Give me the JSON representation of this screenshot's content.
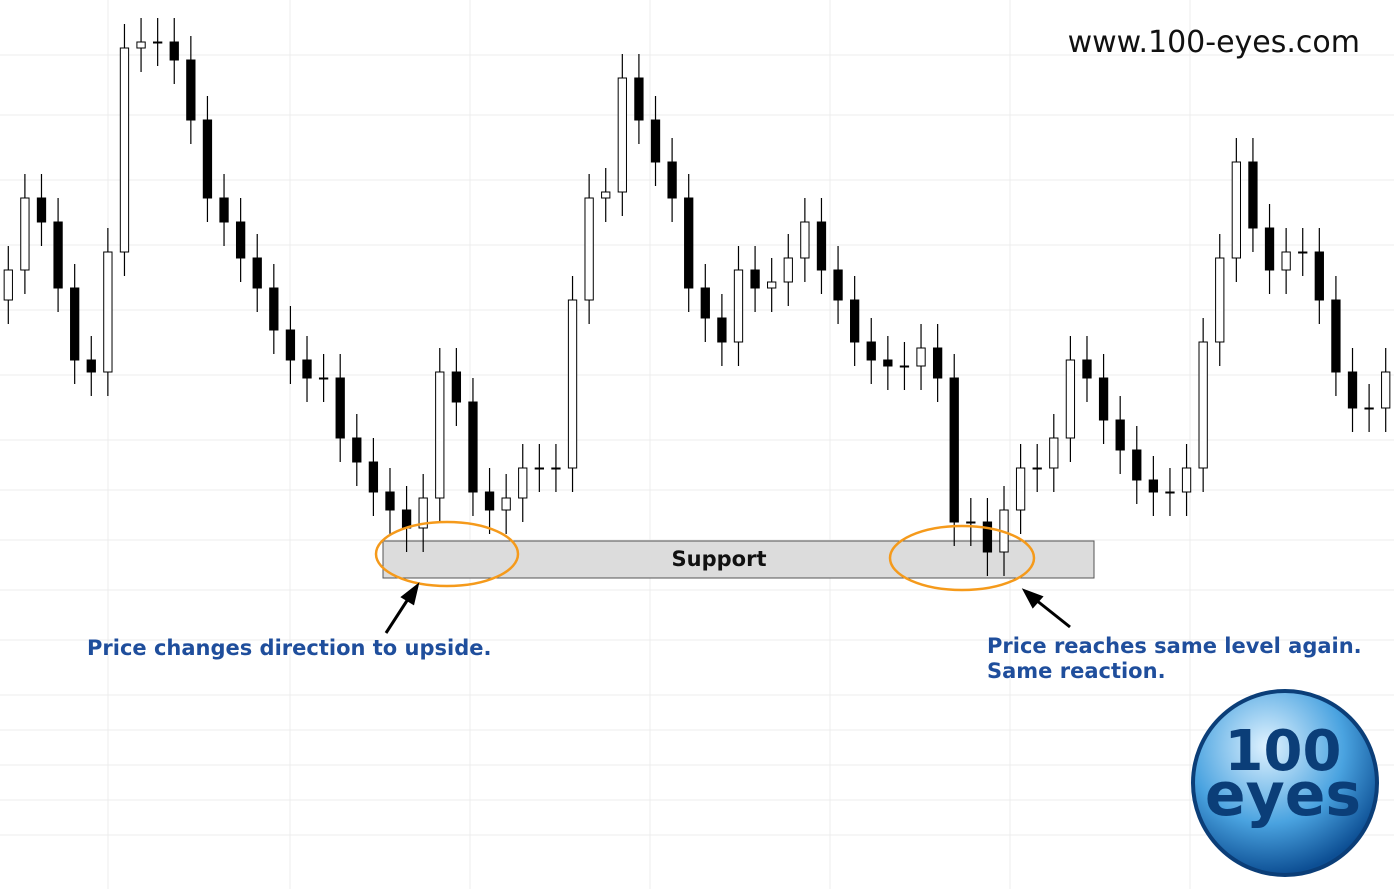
{
  "chart_data": {
    "type": "candlestick",
    "ylim": [
      0,
      100
    ],
    "up_color": "#ffffff",
    "down_color": "#000000",
    "wick_color": "#000000",
    "open": [
      50,
      55,
      67,
      63,
      52,
      40,
      38,
      58,
      92,
      93,
      93,
      90,
      80,
      67,
      63,
      57,
      52,
      45,
      40,
      37,
      37,
      27,
      23,
      18,
      15,
      12,
      17,
      38,
      33,
      18,
      15,
      17,
      22,
      22,
      22,
      50,
      67,
      68,
      87,
      80,
      73,
      67,
      52,
      47,
      43,
      55,
      52,
      53,
      57,
      63,
      55,
      50,
      43,
      40,
      39,
      39,
      42,
      37,
      13,
      13,
      8,
      15,
      22,
      22,
      27,
      40,
      37,
      30,
      25,
      20,
      18,
      18,
      22,
      43,
      57,
      73,
      62,
      55,
      58,
      58,
      50,
      38,
      32,
      32
    ],
    "high": [
      59,
      71,
      71,
      67,
      56,
      44,
      62,
      96,
      97,
      97,
      97,
      94,
      84,
      71,
      67,
      61,
      56,
      49,
      44,
      41,
      41,
      31,
      27,
      22,
      19,
      21,
      42,
      42,
      37,
      22,
      21,
      26,
      26,
      26,
      54,
      71,
      72,
      91,
      91,
      84,
      77,
      71,
      56,
      51,
      59,
      59,
      57,
      61,
      67,
      67,
      59,
      54,
      47,
      44,
      43,
      46,
      46,
      41,
      17,
      17,
      19,
      26,
      26,
      31,
      44,
      44,
      41,
      34,
      29,
      24,
      22,
      26,
      47,
      61,
      77,
      77,
      66,
      62,
      62,
      62,
      54,
      42,
      36,
      42
    ],
    "low": [
      46,
      51,
      59,
      48,
      36,
      34,
      34,
      54,
      88,
      89,
      86,
      76,
      63,
      59,
      53,
      48,
      41,
      36,
      33,
      33,
      23,
      19,
      14,
      11,
      8,
      8,
      13,
      29,
      14,
      11,
      11,
      13,
      18,
      18,
      18,
      46,
      63,
      64,
      76,
      69,
      63,
      48,
      43,
      39,
      39,
      48,
      48,
      49,
      53,
      51,
      46,
      39,
      36,
      35,
      35,
      35,
      33,
      9,
      9,
      4,
      4,
      11,
      18,
      18,
      23,
      33,
      26,
      21,
      16,
      14,
      14,
      14,
      18,
      39,
      53,
      58,
      51,
      51,
      54,
      46,
      34,
      28,
      28,
      28
    ],
    "close": [
      55,
      67,
      63,
      52,
      40,
      38,
      58,
      92,
      93,
      93,
      90,
      80,
      67,
      63,
      57,
      52,
      45,
      40,
      37,
      37,
      27,
      23,
      18,
      15,
      12,
      17,
      38,
      33,
      18,
      15,
      17,
      22,
      22,
      22,
      50,
      67,
      68,
      87,
      80,
      73,
      67,
      52,
      47,
      43,
      55,
      52,
      53,
      57,
      63,
      55,
      50,
      43,
      40,
      39,
      39,
      42,
      37,
      13,
      13,
      8,
      15,
      22,
      22,
      27,
      40,
      37,
      30,
      25,
      20,
      18,
      18,
      22,
      43,
      57,
      73,
      62,
      55,
      58,
      58,
      50,
      38,
      32,
      32,
      38
    ],
    "watermark": "www.100-eyes.com",
    "zone_label": "Support",
    "annotations": [
      "Price changes direction to upside.",
      "Price reaches same level again.",
      "Same reaction."
    ],
    "logo": {
      "top": "100",
      "bottom": "eyes"
    }
  }
}
